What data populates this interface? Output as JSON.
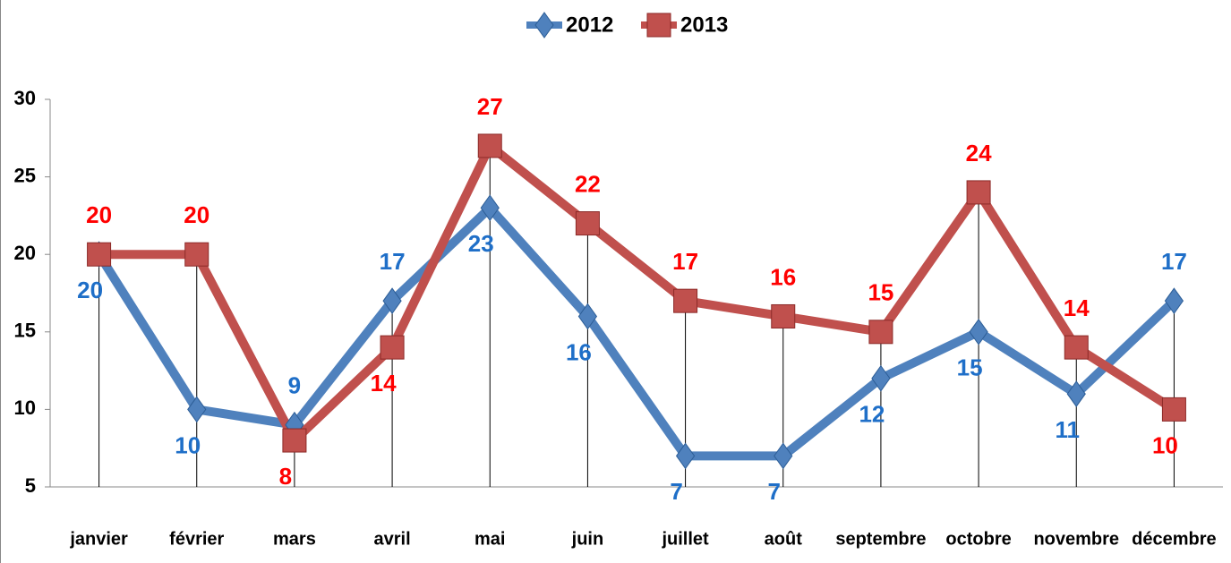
{
  "chart_data": {
    "type": "line",
    "categories": [
      "janvier",
      "février",
      "mars",
      "avril",
      "mai",
      "juin",
      "juillet",
      "août",
      "septembre",
      "octobre",
      "novembre",
      "décembre"
    ],
    "series": [
      {
        "name": "2012",
        "color": "#4f81bd",
        "label_color": "#1f6fc8",
        "marker": "diamond",
        "values": [
          20,
          10,
          9,
          17,
          23,
          16,
          7,
          7,
          12,
          15,
          11,
          17
        ]
      },
      {
        "name": "2013",
        "color": "#c0504d",
        "label_color": "#ff0000",
        "marker": "square",
        "values": [
          20,
          20,
          8,
          14,
          27,
          22,
          17,
          16,
          15,
          24,
          14,
          10
        ]
      }
    ],
    "ylim": [
      5,
      30
    ],
    "yticks": [
      5,
      10,
      15,
      20,
      25,
      30
    ],
    "legend": "top",
    "drop_lines": true
  }
}
